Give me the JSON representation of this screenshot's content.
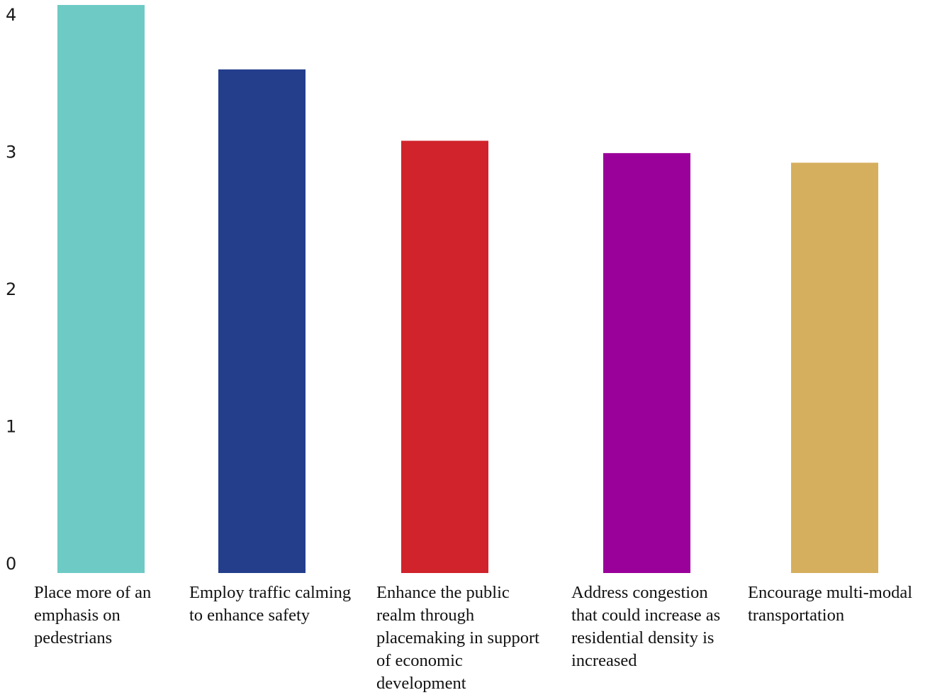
{
  "chart_data": {
    "type": "bar",
    "title": "",
    "xlabel": "",
    "ylabel": "",
    "ylim": [
      0,
      4.1
    ],
    "yticks": [
      0,
      1,
      2,
      3,
      4
    ],
    "grid": false,
    "categories": [
      "Place more of an\nemphasis on\npedestrians",
      "Employ traffic calming\nto enhance safety",
      "Enhance the public\nrealm through\nplacemaking in support\nof economic\ndevelopment",
      "Address congestion\nthat could increase as\nresidential density is\nincreased",
      "Encourage multi-modal\ntransportation"
    ],
    "values": [
      4.16,
      3.67,
      3.15,
      3.06,
      2.99
    ],
    "colors": [
      "#6ecac5",
      "#243e8c",
      "#d0232b",
      "#9a009a",
      "#d6af5e"
    ]
  }
}
